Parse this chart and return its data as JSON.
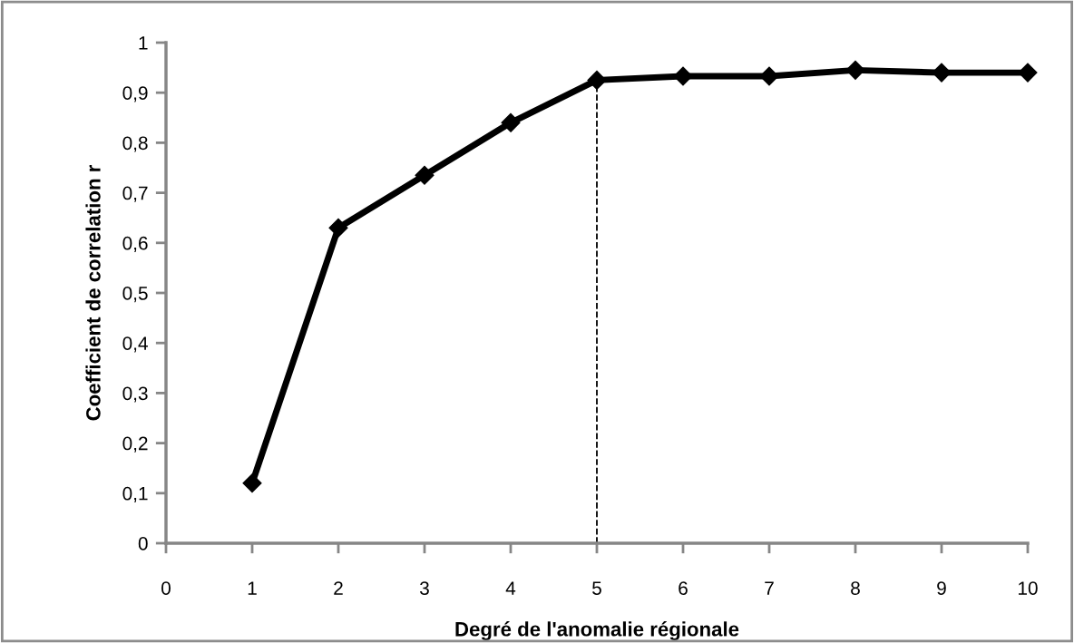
{
  "chart_data": {
    "type": "line",
    "xlabel": "Degré de l'anomalie régionale",
    "ylabel": "Coefficient de correlation r",
    "x": [
      1,
      2,
      3,
      4,
      5,
      6,
      7,
      8,
      9,
      10
    ],
    "series": [
      {
        "color": "#000000",
        "values": [
          0.12,
          0.63,
          0.735,
          0.84,
          0.925,
          0.933,
          0.933,
          0.945,
          0.94,
          0.94
        ]
      }
    ],
    "xlim": [
      0,
      10
    ],
    "xticks": [
      0,
      1,
      2,
      3,
      4,
      5,
      6,
      7,
      8,
      9,
      10
    ],
    "ylim": [
      0,
      1
    ],
    "yticks": [
      0,
      {
        "value": 0.1,
        "label": "0,1"
      },
      {
        "value": 0.2,
        "label": "0,2"
      },
      {
        "value": 0.3,
        "label": "0,3"
      },
      {
        "value": 0.4,
        "label": "0,4"
      },
      {
        "value": 0.5,
        "label": "0,5"
      },
      {
        "value": 0.6,
        "label": "0,6"
      },
      {
        "value": 0.7,
        "label": "0,7"
      },
      {
        "value": 0.8,
        "label": "0,8"
      },
      {
        "value": 0.9,
        "label": "0,9"
      },
      1
    ],
    "ref_lines": [
      {
        "axis": "x",
        "value": 5,
        "color": "#000000",
        "line_style": "dashed"
      }
    ],
    "marker": "diamond",
    "line_style": "solid",
    "grid": false,
    "legend": false
  }
}
